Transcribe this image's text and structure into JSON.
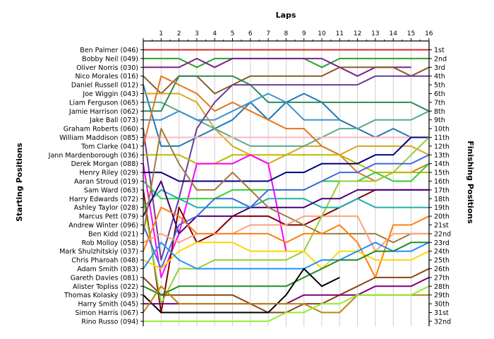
{
  "chart_data": {
    "type": "line",
    "title": "Laps",
    "ylabel_left": "Starting Positions",
    "ylabel_right": "Finishing Positions",
    "x": [
      0,
      1,
      2,
      3,
      4,
      5,
      6,
      7,
      8,
      9,
      10,
      11,
      12,
      13,
      14,
      15,
      16
    ],
    "x_tick_labels": [
      "1",
      "2",
      "3",
      "4",
      "5",
      "6",
      "7",
      "8",
      "9",
      "10",
      "11",
      "12",
      "13",
      "14",
      "15",
      "16"
    ],
    "starting_grid": [
      "Ben Palmer (046)",
      "Bobby Neil (049)",
      "Oliver Norris (030)",
      "Nico Morales (016)",
      "Daniel Russell (012)",
      "Joe Wiggin (043)",
      "Liam Ferguson (065)",
      "Jamie Harrison (062)",
      "Jake Ball (073)",
      "Graham Roberts (060)",
      "William Maddison (085)",
      "Tom Clarke (041)",
      "Jann Mardenborough (036)",
      "Derek Morgan (088)",
      "Henry Riley (029)",
      "Aaran Stroud (019)",
      "Sam Ward (063)",
      "Harry Edwards (072)",
      "Ashley Taylor (028)",
      "Marcus Pett (079)",
      "Andrew Winter (096)",
      "Ben Kidd (021)",
      "Rob Molloy (058)",
      "Mark Shulzhitskiy (037)",
      "Chris Pharoah (048)",
      "Adam Smith (083)",
      "Gareth Davies (081)",
      "Alister Topliss (022)",
      "Thomas Kolasky (093)",
      "Harry Smith (045)",
      "Simon Harris (067)",
      "Rino Russo (094)"
    ],
    "finishing_positions": [
      "1st",
      "2nd",
      "3rd",
      "4th",
      "5th",
      "6th",
      "7th",
      "8th",
      "9th",
      "10th",
      "11th",
      "12th",
      "13th",
      "14th",
      "15th",
      "16th",
      "17th",
      "18th",
      "19th",
      "20th",
      "21st",
      "22nd",
      "23rd",
      "24th",
      "25th",
      "26th",
      "27th",
      "28th",
      "29th",
      "30th",
      "31st",
      "32nd"
    ],
    "series": [
      {
        "color": "#d62728",
        "values": [
          1,
          1,
          1,
          1,
          1,
          1,
          1,
          1,
          1,
          1,
          1,
          1,
          1,
          1,
          1,
          1,
          1
        ]
      },
      {
        "color": "#2ca02c",
        "values": [
          2,
          2,
          2,
          3,
          2,
          2,
          2,
          2,
          2,
          2,
          3,
          2,
          2,
          2,
          2,
          2,
          2
        ]
      },
      {
        "color": "#7f1f8f",
        "values": [
          3,
          3,
          3,
          2,
          3,
          2,
          2,
          2,
          2,
          2,
          2,
          3,
          4,
          3,
          3,
          3,
          null
        ]
      },
      {
        "color": "#8b5a2b",
        "values": [
          4,
          6,
          4,
          4,
          6,
          5,
          4,
          4,
          4,
          4,
          4,
          3,
          3,
          3,
          3,
          4,
          3
        ]
      },
      {
        "color": "#1f77b4",
        "values": [
          5,
          12,
          12,
          11,
          10,
          9,
          7,
          9,
          7,
          6,
          7,
          9,
          10,
          11,
          10,
          11,
          11
        ]
      },
      {
        "color": "#daa520",
        "values": [
          6,
          6,
          6,
          7,
          10,
          12,
          13,
          14,
          13,
          12,
          12,
          13,
          12,
          12,
          12,
          12,
          13
        ]
      },
      {
        "color": "#5aaa8a",
        "values": [
          7,
          7,
          8,
          9,
          10,
          11,
          12,
          12,
          12,
          12,
          11,
          10,
          10,
          9,
          9,
          9,
          8
        ]
      },
      {
        "color": "#2e8b57",
        "values": [
          8,
          8,
          4,
          4,
          4,
          4,
          5,
          7,
          7,
          7,
          7,
          7,
          7,
          7,
          7,
          7,
          8
        ]
      },
      {
        "color": "#3c92d4",
        "values": [
          9,
          9,
          8,
          9,
          9,
          8,
          7,
          6,
          7,
          9,
          9,
          9,
          null,
          null,
          null,
          null,
          null
        ]
      },
      {
        "color": "#6a3d9a",
        "values": [
          10,
          25,
          18,
          10,
          7,
          5,
          5,
          5,
          5,
          5,
          5,
          5,
          5,
          4,
          4,
          4,
          4
        ]
      },
      {
        "color": "#ffb6c1",
        "values": [
          11,
          11,
          11,
          11,
          11,
          11,
          11,
          11,
          11,
          11,
          11,
          11,
          11,
          11,
          11,
          11,
          11
        ]
      },
      {
        "color": "#e07820",
        "values": [
          12,
          4,
          5,
          6,
          8,
          7,
          8,
          9,
          10,
          10,
          12,
          13,
          15,
          16,
          15,
          15,
          14
        ]
      },
      {
        "color": "#bbbb00",
        "values": [
          13,
          13,
          13,
          14,
          14,
          13,
          13,
          13,
          13,
          13,
          13,
          13,
          14,
          15,
          15,
          15,
          15
        ]
      },
      {
        "color": "#ff00ff",
        "values": [
          14,
          27,
          22,
          14,
          14,
          14,
          13,
          14,
          24,
          null,
          null,
          null,
          null,
          null,
          null,
          null,
          null
        ]
      },
      {
        "color": "#000080",
        "values": [
          15,
          15,
          16,
          16,
          16,
          16,
          16,
          16,
          15,
          15,
          14,
          14,
          14,
          13,
          13,
          11,
          11
        ]
      },
      {
        "color": "#32cd32",
        "values": [
          16,
          18,
          18,
          18,
          18,
          17,
          17,
          17,
          17,
          17,
          16,
          16,
          16,
          15,
          16,
          16,
          14
        ]
      },
      {
        "color": "#800000",
        "values": [
          17,
          31,
          19,
          23,
          22,
          20,
          20,
          20,
          21,
          21,
          20,
          19,
          18,
          17,
          17,
          17,
          17
        ]
      },
      {
        "color": "#9acd32",
        "values": [
          18,
          30,
          26,
          26,
          25,
          25,
          25,
          25,
          25,
          24,
          20,
          16,
          16,
          16,
          15,
          13,
          11
        ]
      },
      {
        "color": "#20b2aa",
        "values": [
          19,
          17,
          18,
          19,
          19,
          19,
          19,
          18,
          18,
          18,
          19,
          19,
          18,
          19,
          19,
          19,
          19
        ]
      },
      {
        "color": "#4b0082",
        "values": [
          20,
          16,
          22,
          20,
          20,
          20,
          19,
          19,
          19,
          19,
          18,
          18,
          17,
          17,
          17,
          17,
          17
        ]
      },
      {
        "color": "#4169e1",
        "values": [
          21,
          26,
          21,
          20,
          18,
          18,
          19,
          17,
          17,
          17,
          16,
          15,
          15,
          14,
          14,
          14,
          13
        ]
      },
      {
        "color": "#9e7b3c",
        "values": [
          22,
          10,
          14,
          17,
          17,
          15,
          17,
          19,
          20,
          21,
          22,
          22,
          22,
          22,
          23,
          22,
          22
        ]
      },
      {
        "color": "#ffa07a",
        "values": [
          23,
          22,
          23,
          22,
          22,
          22,
          21,
          21,
          21,
          20,
          20,
          20,
          20,
          24,
          22,
          22,
          22
        ]
      },
      {
        "color": "#ff7f0e",
        "values": [
          24,
          19,
          20,
          22,
          22,
          22,
          22,
          22,
          23,
          22,
          22,
          21,
          23,
          27,
          21,
          21,
          20
        ]
      },
      {
        "color": "#ffd700",
        "values": [
          25,
          26,
          24,
          23,
          23,
          23,
          24,
          24,
          24,
          24,
          26,
          24,
          24,
          25,
          25,
          25,
          24
        ]
      },
      {
        "color": "#1e90ff",
        "values": [
          26,
          23,
          25,
          26,
          26,
          26,
          26,
          26,
          26,
          26,
          25,
          25,
          24,
          23,
          24,
          24,
          23
        ]
      },
      {
        "color": "#8b4513",
        "values": [
          27,
          29,
          29,
          29,
          29,
          29,
          30,
          31,
          31,
          30,
          30,
          29,
          28,
          27,
          27,
          27,
          26
        ]
      },
      {
        "color": "#228b22",
        "values": [
          28,
          29,
          28,
          28,
          28,
          28,
          28,
          28,
          28,
          27,
          26,
          25,
          25,
          24,
          24,
          23,
          23
        ]
      },
      {
        "color": "#000000",
        "values": [
          29,
          31,
          31,
          31,
          31,
          31,
          31,
          31,
          29,
          26,
          28,
          27,
          null,
          null,
          null,
          null,
          null
        ]
      },
      {
        "color": "#800080",
        "values": [
          30,
          30,
          30,
          30,
          30,
          30,
          30,
          30,
          30,
          29,
          29,
          29,
          29,
          28,
          28,
          28,
          27
        ]
      },
      {
        "color": "#b8860b",
        "values": [
          31,
          28,
          30,
          30,
          30,
          30,
          30,
          30,
          30,
          30,
          31,
          31,
          29,
          29,
          29,
          29,
          29
        ]
      },
      {
        "color": "#90ee30",
        "values": [
          32,
          32,
          32,
          32,
          32,
          32,
          32,
          32,
          31,
          31,
          30,
          30,
          29,
          29,
          29,
          29,
          28
        ]
      }
    ]
  }
}
